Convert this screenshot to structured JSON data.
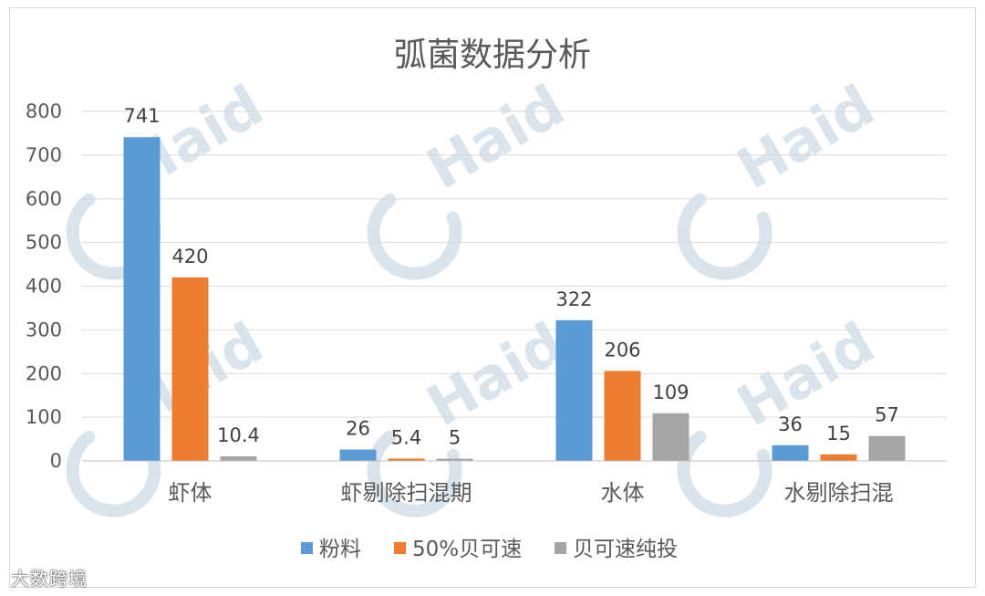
{
  "chart_data": {
    "type": "bar",
    "title": "弧菌数据分析",
    "categories": [
      "虾体",
      "虾剔除扫混期",
      "水体",
      "水剔除扫混"
    ],
    "series": [
      {
        "name": "粉料",
        "values": [
          741,
          26,
          322,
          36
        ],
        "labels": [
          "741",
          "26",
          "322",
          "36"
        ],
        "color": "#5b9bd5"
      },
      {
        "name": "50%贝可速",
        "values": [
          420,
          5.4,
          206,
          15
        ],
        "labels": [
          "420",
          "5.4",
          "206",
          "15"
        ],
        "color": "#ed7d31"
      },
      {
        "name": "贝可速纯投",
        "values": [
          10.4,
          5,
          109,
          57
        ],
        "labels": [
          "10.4",
          "5",
          "109",
          "57"
        ],
        "color": "#a5a5a5"
      }
    ],
    "yticks": [
      "0",
      "100",
      "200",
      "300",
      "400",
      "500",
      "600",
      "700",
      "800"
    ],
    "ylim": [
      0,
      800
    ],
    "grid": true,
    "legend_position": "bottom"
  },
  "watermark": {
    "text": "Haid",
    "color": "#d9e4ec"
  },
  "footer_mark": "大数跨境"
}
